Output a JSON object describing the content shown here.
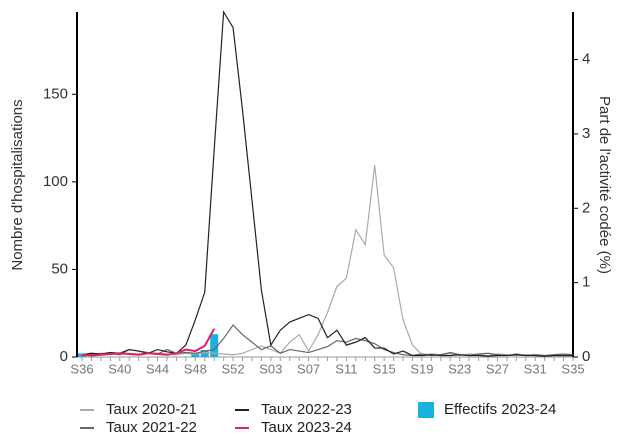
{
  "chart_data": {
    "type": "line",
    "y_label": "Nombre d'hospitalisations",
    "y2_label": "Part de l'activité codée (%)",
    "ylim": [
      0,
      197
    ],
    "yticks": [
      0,
      50,
      100,
      150
    ],
    "y2lim": [
      0,
      4.64
    ],
    "y2ticks": [
      0,
      1,
      2,
      3,
      4
    ],
    "categories": [
      "S36",
      null,
      null,
      null,
      "S40",
      null,
      null,
      null,
      "S44",
      null,
      null,
      null,
      "S48",
      null,
      null,
      null,
      "S52",
      null,
      null,
      null,
      "S03",
      null,
      null,
      null,
      "S07",
      null,
      null,
      null,
      "S11",
      null,
      null,
      null,
      "S15",
      null,
      null,
      null,
      "S19",
      null,
      null,
      null,
      "S23",
      null,
      null,
      null,
      "S27",
      null,
      null,
      null,
      "S31",
      null,
      null,
      null,
      "S35"
    ],
    "legend": "bottom",
    "series": [
      {
        "name": "Taux 2020-21",
        "type": "line",
        "axis": "y2",
        "color": "#aaaaaa",
        "values": [
          0.02,
          0.03,
          0.05,
          0.04,
          0.03,
          0.05,
          0.04,
          0.06,
          0.05,
          0.04,
          0.03,
          0.05,
          0.04,
          0.06,
          0.05,
          0.04,
          0.03,
          0.05,
          0.1,
          0.15,
          0.1,
          0.05,
          0.2,
          0.3,
          0.08,
          0.3,
          0.6,
          0.95,
          1.06,
          1.71,
          1.51,
          2.58,
          1.37,
          1.2,
          0.5,
          0.16,
          0.03,
          0.04,
          0.03,
          0.05,
          0.02,
          0.04,
          0.03,
          0.02,
          0.04,
          0.03,
          0.02,
          0.03,
          0.02,
          0.01,
          0.02,
          0.01,
          0.02
        ]
      },
      {
        "name": "Taux 2021-22",
        "type": "line",
        "axis": "y2",
        "color": "#666666",
        "values": [
          0.02,
          0.03,
          0.04,
          0.05,
          0.03,
          0.1,
          0.08,
          0.06,
          0.04,
          0.1,
          0.05,
          0.06,
          0.05,
          0.08,
          0.1,
          0.25,
          0.43,
          0.3,
          0.2,
          0.1,
          0.15,
          0.05,
          0.1,
          0.08,
          0.06,
          0.1,
          0.14,
          0.22,
          0.2,
          0.25,
          0.22,
          0.18,
          0.1,
          0.06,
          0.03,
          0.02,
          0.04,
          0.02,
          0.03,
          0.06,
          0.03,
          0.02,
          0.04,
          0.05,
          0.03,
          0.02,
          0.04,
          0.02,
          0.03,
          0.02,
          0.03,
          0.04,
          0.03
        ]
      },
      {
        "name": "Taux 2022-23",
        "type": "line",
        "axis": "y2",
        "color": "#222222",
        "values": [
          0.03,
          0.05,
          0.04,
          0.06,
          0.05,
          0.1,
          0.08,
          0.05,
          0.1,
          0.07,
          0.05,
          0.16,
          0.5,
          0.87,
          2.79,
          4.64,
          4.43,
          3.32,
          2.11,
          0.9,
          0.16,
          0.36,
          0.47,
          0.52,
          0.57,
          0.52,
          0.26,
          0.36,
          0.16,
          0.2,
          0.26,
          0.12,
          0.12,
          0.04,
          0.08,
          0.02,
          0.02,
          0.03,
          0.02,
          0.02,
          0.03,
          0.02,
          0.02,
          0.01,
          0.02,
          0.02,
          0.03,
          0.02,
          0.02,
          0.01,
          0.02,
          0.02,
          0.02
        ]
      },
      {
        "name": "Taux 2023-24",
        "type": "line",
        "axis": "y2",
        "color": "#e0206a",
        "values": [
          0.03,
          0.02,
          0.03,
          0.04,
          0.05,
          0.04,
          0.03,
          0.05,
          0.04,
          0.03,
          0.05,
          0.1,
          0.08,
          0.15,
          0.38,
          null,
          null,
          null,
          null,
          null,
          null,
          null,
          null,
          null,
          null,
          null,
          null,
          null,
          null,
          null,
          null,
          null,
          null,
          null,
          null,
          null,
          null,
          null,
          null,
          null,
          null,
          null,
          null,
          null,
          null,
          null,
          null,
          null,
          null,
          null,
          null,
          null,
          null
        ]
      },
      {
        "name": "Effectifs 2023-24",
        "type": "bar",
        "axis": "y",
        "color": "#1ab0e0",
        "values": [
          2,
          0,
          0,
          0,
          0,
          0,
          0,
          0,
          0,
          0,
          0,
          0,
          2,
          4,
          13,
          null,
          null,
          null,
          null,
          null,
          null,
          null,
          null,
          null,
          null,
          null,
          null,
          null,
          null,
          null,
          null,
          null,
          null,
          null,
          null,
          null,
          null,
          null,
          null,
          null,
          null,
          null,
          null,
          null,
          null,
          null,
          null,
          null,
          null,
          null,
          null,
          null,
          null
        ]
      }
    ]
  }
}
